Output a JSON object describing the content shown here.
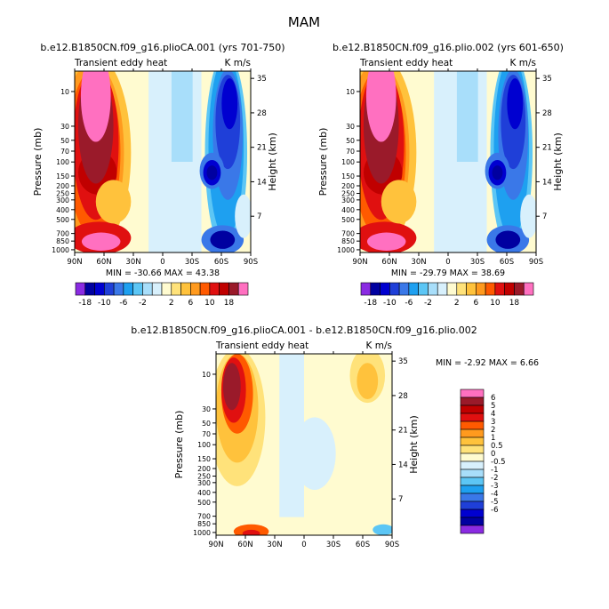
{
  "figure": {
    "title": "MAM"
  },
  "chart_data": [
    {
      "type": "heatmap",
      "title": "b.e12.B1850CN.f09_g16.plioCA.001 (yrs 701-750)",
      "left_label": "Transient eddy heat",
      "right_label": "K m/s",
      "stats": "MIN = -30.66  MAX = 43.38",
      "xlabel": "",
      "ylabel": "Pressure (mb)",
      "y2label": "Height (km)",
      "x_ticks": [
        "90N",
        "60N",
        "30N",
        "0",
        "30S",
        "60S",
        "90S"
      ],
      "y_ticks": [
        "10",
        "30",
        "50",
        "70",
        "100",
        "150",
        "200",
        "250",
        "300",
        "400",
        "500",
        "700",
        "850",
        "1000"
      ],
      "y2_ticks": [
        "35",
        "28",
        "21",
        "14",
        "7"
      ],
      "field_range": [
        -30.66,
        43.38
      ]
    },
    {
      "type": "heatmap",
      "title": "b.e12.B1850CN.f09_g16.plio.002 (yrs 601-650)",
      "left_label": "Transient eddy heat",
      "right_label": "K m/s",
      "stats": "MIN = -29.79  MAX = 38.69",
      "xlabel": "",
      "ylabel": "Pressure (mb)",
      "y2label": "Height (km)",
      "x_ticks": [
        "90N",
        "60N",
        "30N",
        "0",
        "30S",
        "60S",
        "90S"
      ],
      "y_ticks": [
        "10",
        "30",
        "50",
        "70",
        "100",
        "150",
        "200",
        "250",
        "300",
        "400",
        "500",
        "700",
        "850",
        "1000"
      ],
      "y2_ticks": [
        "35",
        "28",
        "21",
        "14",
        "7"
      ],
      "field_range": [
        -29.79,
        38.69
      ]
    },
    {
      "type": "heatmap",
      "title": "b.e12.B1850CN.f09_g16.plioCA.001 - b.e12.B1850CN.f09_g16.plio.002",
      "left_label": "Transient eddy heat",
      "right_label": "K m/s",
      "stats": "MIN = -2.92  MAX = 6.66",
      "xlabel": "",
      "ylabel": "Pressure (mb)",
      "y2label": "Height (km)",
      "x_ticks": [
        "90N",
        "60N",
        "30N",
        "0",
        "30S",
        "60S",
        "90S"
      ],
      "y_ticks": [
        "10",
        "30",
        "50",
        "70",
        "100",
        "150",
        "200",
        "250",
        "300",
        "400",
        "500",
        "700",
        "850",
        "1000"
      ],
      "y2_ticks": [
        "35",
        "28",
        "21",
        "14",
        "7"
      ],
      "field_range": [
        -2.92,
        6.66
      ]
    }
  ],
  "colorbar_top": {
    "labels": [
      "-18",
      "-10",
      "-6",
      "-2",
      "2",
      "6",
      "10",
      "18"
    ],
    "colors": [
      "#8a2be2",
      "#0000a0",
      "#0000d0",
      "#1f3fd8",
      "#3a78e8",
      "#1ea0f0",
      "#5cc6f5",
      "#a8defa",
      "#d8f0fc",
      "#fffbd0",
      "#ffe27a",
      "#ffc23c",
      "#ff9a1e",
      "#ff5a00",
      "#e01010",
      "#c00000",
      "#9a1a2a",
      "#ff70c0"
    ]
  },
  "colorbar_diff": {
    "labels": [
      "6",
      "5",
      "4",
      "3",
      "2",
      "1",
      "0.5",
      "0",
      "-0.5",
      "-1",
      "-2",
      "-3",
      "-4",
      "-5",
      "-6"
    ],
    "colors": [
      "#ff70c0",
      "#9a1a2a",
      "#c00000",
      "#e01010",
      "#ff5a00",
      "#ff9a1e",
      "#ffc23c",
      "#ffe27a",
      "#fffbd0",
      "#d8f0fc",
      "#a8defa",
      "#5cc6f5",
      "#1ea0f0",
      "#3a78e8",
      "#1f3fd8",
      "#0000d0",
      "#0000a0",
      "#8a2be2"
    ]
  }
}
